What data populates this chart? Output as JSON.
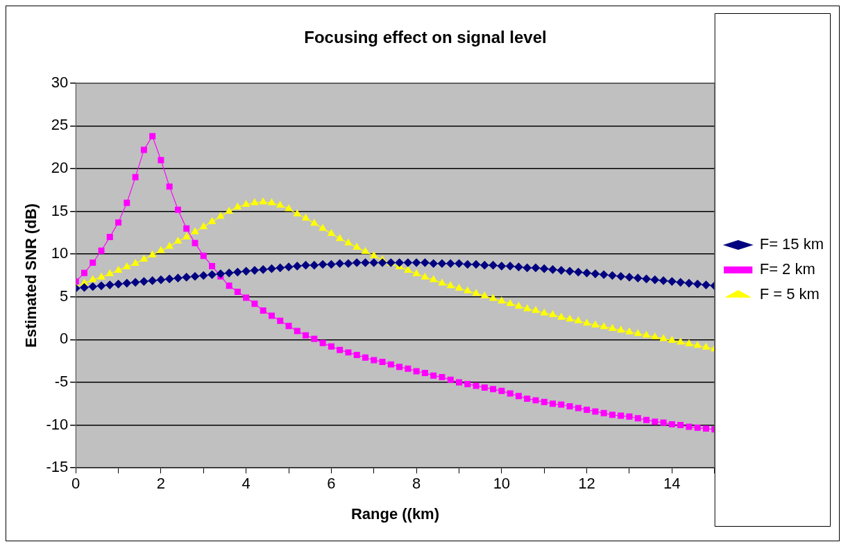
{
  "chart_data": {
    "type": "line",
    "title": "Focusing effect on signal level",
    "xlabel": "Range ((km)",
    "ylabel": "Estimated SNR (dB)",
    "x": [
      0,
      0.2,
      0.4,
      0.6,
      0.8,
      1,
      1.2,
      1.4,
      1.6,
      1.8,
      2,
      2.2,
      2.4,
      2.6,
      2.8,
      3,
      3.2,
      3.4,
      3.6,
      3.8,
      4,
      4.2,
      4.4,
      4.6,
      4.8,
      5,
      5.2,
      5.4,
      5.6,
      5.8,
      6,
      6.2,
      6.4,
      6.6,
      6.8,
      7,
      7.2,
      7.4,
      7.6,
      7.8,
      8,
      8.2,
      8.4,
      8.6,
      8.8,
      9,
      9.2,
      9.4,
      9.6,
      9.8,
      10,
      10.2,
      10.4,
      10.6,
      10.8,
      11,
      11.2,
      11.4,
      11.6,
      11.8,
      12,
      12.2,
      12.4,
      12.6,
      12.8,
      13,
      13.2,
      13.4,
      13.6,
      13.8,
      14,
      14.2,
      14.4,
      14.6,
      14.8,
      15
    ],
    "series": [
      {
        "name": "F= 15 km",
        "color": "#000080",
        "marker": "diamond",
        "values": [
          6.0,
          6.1,
          6.2,
          6.3,
          6.4,
          6.5,
          6.6,
          6.7,
          6.8,
          6.9,
          7.0,
          7.1,
          7.2,
          7.3,
          7.4,
          7.5,
          7.6,
          7.7,
          7.8,
          7.9,
          8.0,
          8.1,
          8.2,
          8.3,
          8.4,
          8.5,
          8.6,
          8.7,
          8.7,
          8.8,
          8.8,
          8.9,
          8.9,
          9.0,
          9.0,
          9.0,
          9.0,
          9.0,
          9.0,
          9.0,
          9.0,
          9.0,
          8.9,
          8.9,
          8.9,
          8.9,
          8.8,
          8.8,
          8.7,
          8.7,
          8.6,
          8.6,
          8.5,
          8.4,
          8.4,
          8.3,
          8.2,
          8.1,
          8.0,
          7.9,
          7.8,
          7.7,
          7.6,
          7.5,
          7.4,
          7.3,
          7.2,
          7.1,
          7.0,
          6.9,
          6.8,
          6.7,
          6.6,
          6.5,
          6.4,
          6.3
        ]
      },
      {
        "name": "F= 2 km",
        "color": "#ff00ff",
        "marker": "square",
        "values": [
          6.8,
          7.8,
          9.0,
          10.4,
          12.0,
          13.7,
          16.0,
          19.0,
          22.2,
          23.8,
          21.0,
          17.9,
          15.2,
          13.0,
          11.3,
          9.8,
          8.6,
          7.4,
          6.3,
          5.6,
          4.9,
          4.2,
          3.4,
          2.8,
          2.2,
          1.6,
          1.0,
          0.5,
          0.1,
          -0.4,
          -0.8,
          -1.2,
          -1.5,
          -1.8,
          -2.1,
          -2.4,
          -2.6,
          -2.9,
          -3.2,
          -3.4,
          -3.7,
          -3.9,
          -4.2,
          -4.4,
          -4.7,
          -5.0,
          -5.2,
          -5.4,
          -5.6,
          -5.8,
          -6.0,
          -6.3,
          -6.6,
          -6.9,
          -7.1,
          -7.3,
          -7.5,
          -7.6,
          -7.8,
          -8.0,
          -8.2,
          -8.4,
          -8.6,
          -8.8,
          -8.9,
          -9.0,
          -9.2,
          -9.4,
          -9.6,
          -9.7,
          -9.9,
          -10.0,
          -10.2,
          -10.3,
          -10.4,
          -10.5
        ]
      },
      {
        "name": "F = 5 km",
        "color": "#ffff00",
        "marker": "triangle",
        "values": [
          6.2,
          6.6,
          7.0,
          7.3,
          7.7,
          8.1,
          8.5,
          8.9,
          9.4,
          9.9,
          10.4,
          10.9,
          11.5,
          12.0,
          12.6,
          13.2,
          13.8,
          14.4,
          15.0,
          15.5,
          15.8,
          16.0,
          16.1,
          16.0,
          15.7,
          15.3,
          14.7,
          14.2,
          13.6,
          13.0,
          12.4,
          11.8,
          11.3,
          10.8,
          10.3,
          9.8,
          9.3,
          8.9,
          8.5,
          8.1,
          7.7,
          7.3,
          7.0,
          6.6,
          6.3,
          6.0,
          5.7,
          5.4,
          5.1,
          4.8,
          4.5,
          4.2,
          3.9,
          3.6,
          3.4,
          3.1,
          2.9,
          2.6,
          2.4,
          2.2,
          1.9,
          1.7,
          1.5,
          1.3,
          1.1,
          0.9,
          0.7,
          0.5,
          0.3,
          0.1,
          -0.1,
          -0.3,
          -0.5,
          -0.7,
          -0.9,
          -1.1
        ]
      }
    ],
    "xlim": [
      0,
      15
    ],
    "xticks": [
      0,
      {
        "value": 1,
        "label": null
      },
      2,
      {
        "value": 3,
        "label": null
      },
      4,
      {
        "value": 5,
        "label": null
      },
      6,
      {
        "value": 7,
        "label": null
      },
      8,
      {
        "value": 9,
        "label": null
      },
      10,
      {
        "value": 11,
        "label": null
      },
      12,
      {
        "value": 13,
        "label": null
      },
      14,
      {
        "value": 15,
        "label": null
      }
    ],
    "ylim": [
      -15,
      30
    ],
    "yticks": [
      -15,
      -10,
      -5,
      0,
      5,
      10,
      15,
      20,
      25,
      30
    ],
    "grid": "y",
    "legend": "right"
  }
}
